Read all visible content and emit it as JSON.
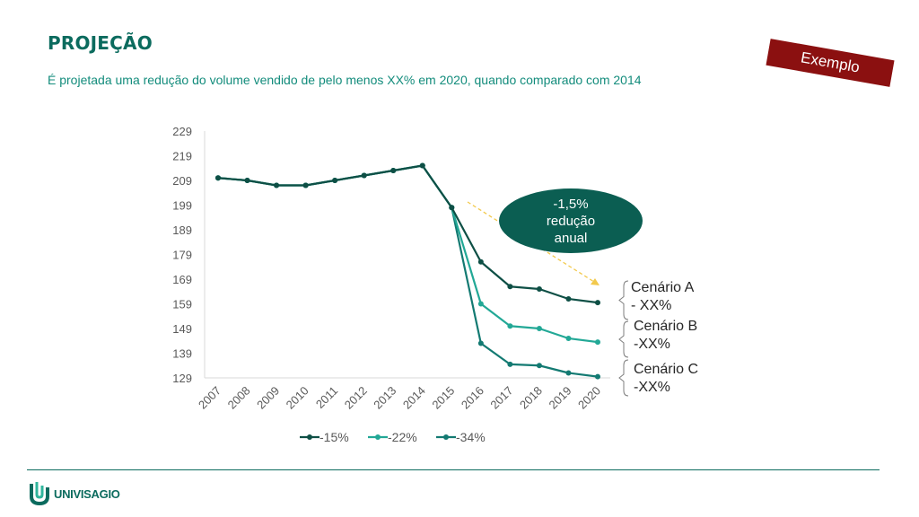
{
  "header": {
    "title": "PROJEÇÃO",
    "subtitle": "É projetada uma redução do volume vendido de pelo menos XX% em 2020, quando comparado com 2014"
  },
  "badge": {
    "label": "Exemplo",
    "color": "#8b1010"
  },
  "callout": {
    "lines": [
      "-1,5%",
      "redução",
      "anual"
    ],
    "color": "#0b5e52",
    "arrow_color": "#f2c94c"
  },
  "scenarios": [
    {
      "lines": [
        "Cenário A",
        "- XX%"
      ]
    },
    {
      "lines": [
        "Cenário B",
        "-XX%"
      ]
    },
    {
      "lines": [
        "Cenário C",
        "-XX%"
      ]
    }
  ],
  "footer": {
    "logo_text": "UNIVISAGIO"
  },
  "chart_data": {
    "type": "line",
    "categories": [
      "2007",
      "2008",
      "2009",
      "2010",
      "2011",
      "2012",
      "2013",
      "2014",
      "2015",
      "2016",
      "2017",
      "2018",
      "2019",
      "2020"
    ],
    "y_ticks": [
      129,
      139,
      149,
      159,
      169,
      179,
      189,
      199,
      209,
      219,
      229
    ],
    "ylim": [
      129,
      229
    ],
    "grid": false,
    "legend_position": "bottom",
    "series": [
      {
        "name": "-15%",
        "color": "#0e4f45",
        "values": [
          210,
          209,
          207,
          207,
          209,
          211,
          213,
          215,
          198,
          176,
          166,
          165,
          161,
          159.5
        ]
      },
      {
        "name": "-22%",
        "color": "#22a896",
        "values": [
          210,
          209,
          207,
          207,
          209,
          211,
          213,
          215,
          198,
          159,
          150,
          149,
          145,
          143.5
        ]
      },
      {
        "name": "-34%",
        "color": "#137a72",
        "values": [
          210,
          209,
          207,
          207,
          209,
          211,
          213,
          215,
          198,
          143,
          134.5,
          134,
          131,
          129.5
        ]
      }
    ]
  }
}
